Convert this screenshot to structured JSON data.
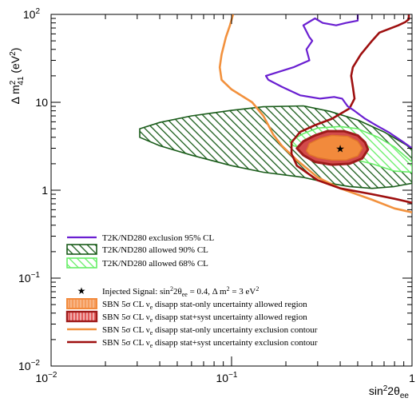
{
  "chart_data": {
    "type": "contour",
    "x_axis": {
      "label": "sin²2θee",
      "label_main": "sin",
      "label_sup": "2",
      "label_rest": "2θ",
      "label_sub": "ee",
      "scale": "log",
      "range": [
        0.01,
        1
      ],
      "ticks": [
        {
          "value": 0.01,
          "base": "10",
          "exp": "−2"
        },
        {
          "value": 0.1,
          "base": "10",
          "exp": "−1"
        },
        {
          "value": 1,
          "base": "1",
          "exp": ""
        }
      ]
    },
    "y_axis": {
      "label": "Δ m²41 (eV²)",
      "label_pre": "Δ m",
      "label_sup": "2",
      "label_sub": "41",
      "label_post": " (eV",
      "label_post_sup": "2",
      "label_close": ")",
      "scale": "log",
      "range": [
        0.01,
        100
      ],
      "ticks": [
        {
          "value": 0.01,
          "base": "10",
          "exp": "−2"
        },
        {
          "value": 0.1,
          "base": "10",
          "exp": "−1"
        },
        {
          "value": 1,
          "base": "1",
          "exp": ""
        },
        {
          "value": 10,
          "base": "10",
          "exp": ""
        },
        {
          "value": 100,
          "base": "10",
          "exp": "2"
        }
      ]
    },
    "colors": {
      "t2k_exclusion": "#6a1fd1",
      "t2k_90": "#1a5c1a",
      "t2k_68": "#66ee66",
      "sbn_stat_region": "#f28a3c",
      "sbn_syst_region": "#9e1b1b",
      "sbn_stat_contour": "#f2913d",
      "sbn_syst_contour": "#9e0f0f",
      "signal": "#000000"
    },
    "injected_signal": {
      "x": 0.4,
      "y": 3
    },
    "series": [
      {
        "key": "t2k_exclusion",
        "kind": "line",
        "points": [
          [
            0.5,
            100
          ],
          [
            0.5,
            85
          ],
          [
            0.43,
            80
          ],
          [
            0.38,
            75
          ],
          [
            0.32,
            80
          ],
          [
            0.29,
            90
          ],
          [
            0.25,
            75
          ],
          [
            0.27,
            55
          ],
          [
            0.28,
            50
          ],
          [
            0.26,
            40
          ],
          [
            0.27,
            30
          ],
          [
            0.22,
            25
          ],
          [
            0.155,
            20
          ],
          [
            0.16,
            18
          ],
          [
            0.19,
            15
          ],
          [
            0.24,
            12
          ],
          [
            0.31,
            11
          ],
          [
            0.37,
            11.5
          ],
          [
            0.41,
            11
          ],
          [
            0.44,
            9
          ],
          [
            0.48,
            8
          ],
          [
            0.5,
            7.5
          ],
          [
            0.55,
            6.5
          ],
          [
            0.63,
            5.5
          ],
          [
            0.75,
            4.5
          ],
          [
            0.9,
            3.5
          ],
          [
            1,
            3
          ]
        ]
      },
      {
        "key": "t2k_90",
        "kind": "hatched-region",
        "points": [
          [
            0.031,
            5
          ],
          [
            0.04,
            5.9
          ],
          [
            0.06,
            7
          ],
          [
            0.1,
            8.1
          ],
          [
            0.15,
            8.9
          ],
          [
            0.25,
            9.1
          ],
          [
            0.35,
            7.9
          ],
          [
            0.5,
            6.3
          ],
          [
            0.7,
            4.6
          ],
          [
            1,
            3
          ],
          [
            1,
            1.2
          ],
          [
            0.8,
            1.1
          ],
          [
            0.6,
            1.05
          ],
          [
            0.45,
            1.1
          ],
          [
            0.35,
            1.2
          ],
          [
            0.25,
            1.4
          ],
          [
            0.15,
            1.6
          ],
          [
            0.1,
            1.9
          ],
          [
            0.06,
            2.5
          ],
          [
            0.04,
            3.2
          ],
          [
            0.031,
            4
          ]
        ]
      },
      {
        "key": "t2k_68",
        "kind": "hatched-region",
        "points": [
          [
            0.21,
            3.6
          ],
          [
            0.25,
            4.4
          ],
          [
            0.3,
            5.1
          ],
          [
            0.4,
            5.3
          ],
          [
            0.5,
            5.0
          ],
          [
            0.65,
            4.0
          ],
          [
            0.8,
            3.1
          ],
          [
            1,
            2.1
          ],
          [
            1,
            1.6
          ],
          [
            0.8,
            1.65
          ],
          [
            0.6,
            2.0
          ],
          [
            0.45,
            2.3
          ],
          [
            0.35,
            2.6
          ],
          [
            0.27,
            2.9
          ],
          [
            0.22,
            3.2
          ]
        ]
      },
      {
        "key": "sbn_stat_region",
        "kind": "filled-region",
        "points": [
          [
            0.26,
            2.8
          ],
          [
            0.27,
            3.4
          ],
          [
            0.31,
            3.9
          ],
          [
            0.36,
            4.2
          ],
          [
            0.44,
            4.1
          ],
          [
            0.5,
            3.6
          ],
          [
            0.53,
            3.0
          ],
          [
            0.5,
            2.45
          ],
          [
            0.43,
            2.2
          ],
          [
            0.36,
            2.2
          ],
          [
            0.3,
            2.35
          ],
          [
            0.27,
            2.55
          ]
        ]
      },
      {
        "key": "sbn_syst_region",
        "kind": "outlined-region",
        "points": [
          [
            0.23,
            3.0
          ],
          [
            0.25,
            3.6
          ],
          [
            0.29,
            4.2
          ],
          [
            0.34,
            4.7
          ],
          [
            0.42,
            4.7
          ],
          [
            0.5,
            4.2
          ],
          [
            0.55,
            3.5
          ],
          [
            0.57,
            2.9
          ],
          [
            0.53,
            2.3
          ],
          [
            0.45,
            2.0
          ],
          [
            0.36,
            1.95
          ],
          [
            0.29,
            2.1
          ],
          [
            0.25,
            2.5
          ]
        ]
      },
      {
        "key": "sbn_stat_contour",
        "kind": "line",
        "points": [
          [
            0.102,
            100
          ],
          [
            0.098,
            75
          ],
          [
            0.093,
            55
          ],
          [
            0.088,
            35
          ],
          [
            0.086,
            25
          ],
          [
            0.088,
            18
          ],
          [
            0.1,
            14
          ],
          [
            0.13,
            10
          ],
          [
            0.15,
            7
          ],
          [
            0.16,
            5.5
          ],
          [
            0.17,
            4.3
          ],
          [
            0.19,
            3.2
          ],
          [
            0.23,
            2.2
          ],
          [
            0.3,
            1.4
          ],
          [
            0.4,
            1.05
          ],
          [
            0.6,
            0.78
          ],
          [
            0.8,
            0.62
          ],
          [
            1,
            0.56
          ]
        ]
      },
      {
        "key": "sbn_syst_contour",
        "kind": "line",
        "points": [
          [
            0.96,
            100
          ],
          [
            0.96,
            88
          ],
          [
            0.92,
            82
          ],
          [
            0.84,
            75
          ],
          [
            0.66,
            62
          ],
          [
            0.6,
            50
          ],
          [
            0.52,
            35
          ],
          [
            0.47,
            25
          ],
          [
            0.46,
            20
          ],
          [
            0.47,
            15
          ],
          [
            0.48,
            11
          ],
          [
            0.45,
            8.5
          ],
          [
            0.36,
            6.5
          ],
          [
            0.29,
            5.5
          ],
          [
            0.24,
            4.6
          ],
          [
            0.215,
            3.5
          ],
          [
            0.215,
            2.6
          ],
          [
            0.23,
            1.9
          ],
          [
            0.3,
            1.3
          ],
          [
            0.4,
            1.05
          ],
          [
            0.6,
            0.9
          ],
          [
            0.8,
            0.8
          ],
          [
            1,
            0.72
          ]
        ]
      }
    ],
    "legend": {
      "placement": "bottom-left",
      "entries": [
        {
          "key": "t2k_exclusion",
          "symbol": "line",
          "label": "T2K/ND280 exclusion 95% CL"
        },
        {
          "key": "t2k_90",
          "symbol": "hatch-dark",
          "label": "T2K/ND280 allowed 90% CL"
        },
        {
          "key": "t2k_68",
          "symbol": "hatch-light",
          "label": "T2K/ND280 allowed 68% CL"
        },
        {
          "key": "signal",
          "symbol": "star",
          "label": "Injected Signal: sin²2θee = 0.4, Δ m² = 3 eV²",
          "parts": [
            "Injected Signal: sin",
            "2",
            "2θ",
            "ee",
            " = 0.4, Δ m",
            "2",
            " = 3 eV",
            "2"
          ]
        },
        {
          "key": "sbn_stat_region",
          "symbol": "fill-orange",
          "label": "SBN 5σ CL νe disapp stat-only uncertainty allowed region",
          "pre": "SBN 5σ CL ν",
          "sub": "e",
          "post": " disapp stat-only uncertainty allowed region"
        },
        {
          "key": "sbn_syst_region",
          "symbol": "fill-red",
          "label": "SBN 5σ CL νe disapp stat+syst uncertainty allowed region",
          "pre": "SBN 5σ CL ν",
          "sub": "e",
          "post": " disapp stat+syst uncertainty allowed region"
        },
        {
          "key": "sbn_stat_contour",
          "symbol": "line",
          "label": "SBN 5σ CL νe disapp stat-only uncertainty exclusion contour",
          "pre": "SBN 5σ CL ν",
          "sub": "e",
          "post": " disapp stat-only uncertainty exclusion contour"
        },
        {
          "key": "sbn_syst_contour",
          "symbol": "line",
          "label": "SBN 5σ CL νe disapp stat+syst uncertainty exclusion contour",
          "pre": "SBN 5σ CL ν",
          "sub": "e",
          "post": " disapp stat+syst uncertainty exclusion contour"
        }
      ]
    }
  }
}
